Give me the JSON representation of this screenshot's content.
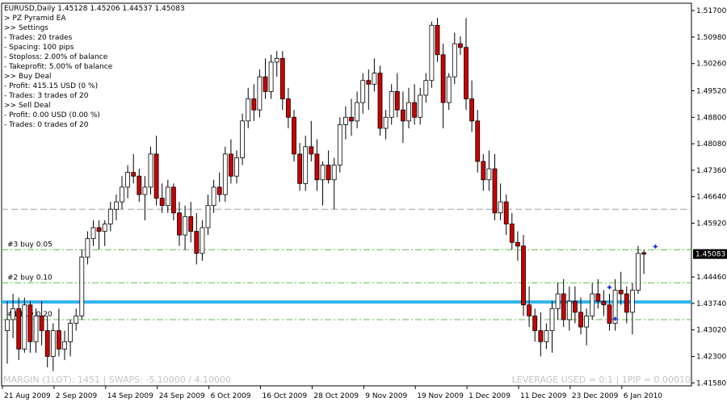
{
  "header": {
    "symbol_line": "EURUSD,Daily  1.45128 1.45206 1.44537 1.45083"
  },
  "ea_panel": {
    "lines": [
      "> PZ Pyramid EA",
      ">> Settings",
      "- Trades: 20 trades",
      "- Spacing: 100 pips",
      "- Stoploss: 2.00% of balance",
      "- Takeprofit: 5.00% of balance",
      ">> Buy Deal",
      "- Profit: 415.15 USD (0 %)",
      "- Trades: 3 trades of 20",
      ">> Sell Deal",
      "- Profit: 0.00 USD (0.00 %)",
      "- Trades: 0 trades of 20"
    ]
  },
  "footer": {
    "left": "MARGIN (1LOT): 1451 | SWAPS: -5.10000 / 4.10000",
    "right": "LEVERAGE USED = 0:1 | 1PIP = 0.00010"
  },
  "colors": {
    "bull_fill": "#ffffff",
    "bear_fill": "#cc0000",
    "candle_outline": "#000000",
    "level_line": "#5bc24a",
    "main_line": "#30b4ee",
    "upper_dashed": "#a0a0a0",
    "marker": "#2030e0",
    "price_tag_bg": "#000000",
    "price_tag_text": "#ffffff",
    "footer_text": "#c4c4c4"
  },
  "chart_data": {
    "type": "candlestick",
    "ylim": [
      1.415,
      1.519
    ],
    "y_ticks": [
      "1.51700",
      "1.50980",
      "1.50260",
      "1.49520",
      "1.48800",
      "1.48080",
      "1.47360",
      "1.46640",
      "1.45920",
      "1.45083",
      "1.44460",
      "1.43740",
      "1.43020",
      "1.42300",
      "1.41580"
    ],
    "y_tick_values": [
      1.517,
      1.5098,
      1.5026,
      1.4952,
      1.488,
      1.4808,
      1.4736,
      1.4664,
      1.4592,
      1.45083,
      1.4446,
      1.4374,
      1.4302,
      1.423,
      1.4158
    ],
    "current_price": 1.45083,
    "current_price_label": "1.45083",
    "x_labels": [
      "21 Aug 2009",
      "2 Sep 2009",
      "14 Sep 2009",
      "24 Sep 2009",
      "6 Oct 2009",
      "16 Oct 2009",
      "28 Oct 2009",
      "9 Nov 2009",
      "19 Nov 2009",
      "1 Dec 2009",
      "11 Dec 2009",
      "23 Dec 2009",
      "6 Jan 2010"
    ],
    "x_label_index": [
      0,
      9,
      18,
      27,
      36,
      45,
      54,
      63,
      72,
      81,
      90,
      99,
      108
    ],
    "levels": [
      {
        "label": "#3 buy 0.05",
        "price": 1.452
      },
      {
        "label": "#2 buy 0.10",
        "price": 1.443
      },
      {
        "label": "#1 buy 0.20",
        "price": 1.433
      }
    ],
    "main_line_price": 1.4378,
    "upper_dashed_price": 1.463,
    "markers": [
      {
        "i": 105,
        "price": 1.4418
      },
      {
        "i": 106,
        "price": 1.4332
      },
      {
        "i": 113,
        "price": 1.4528
      }
    ],
    "candles": [
      [
        1.43,
        1.438,
        1.421,
        1.433
      ],
      [
        1.433,
        1.44,
        1.428,
        1.436
      ],
      [
        1.436,
        1.439,
        1.422,
        1.425
      ],
      [
        1.425,
        1.439,
        1.424,
        1.437
      ],
      [
        1.437,
        1.438,
        1.424,
        1.427
      ],
      [
        1.427,
        1.436,
        1.424,
        1.434
      ],
      [
        1.434,
        1.438,
        1.426,
        1.43
      ],
      [
        1.43,
        1.434,
        1.42,
        1.423
      ],
      [
        1.423,
        1.432,
        1.419,
        1.43
      ],
      [
        1.43,
        1.436,
        1.423,
        1.425
      ],
      [
        1.425,
        1.43,
        1.422,
        1.427
      ],
      [
        1.427,
        1.433,
        1.423,
        1.432
      ],
      [
        1.432,
        1.436,
        1.43,
        1.434
      ],
      [
        1.434,
        1.452,
        1.433,
        1.45
      ],
      [
        1.45,
        1.457,
        1.448,
        1.455
      ],
      [
        1.455,
        1.46,
        1.453,
        1.458
      ],
      [
        1.458,
        1.46,
        1.452,
        1.457
      ],
      [
        1.457,
        1.46,
        1.453,
        1.459
      ],
      [
        1.459,
        1.465,
        1.457,
        1.463
      ],
      [
        1.463,
        1.467,
        1.46,
        1.465
      ],
      [
        1.465,
        1.472,
        1.463,
        1.469
      ],
      [
        1.469,
        1.475,
        1.466,
        1.473
      ],
      [
        1.473,
        1.478,
        1.47,
        1.472
      ],
      [
        1.472,
        1.474,
        1.465,
        1.467
      ],
      [
        1.467,
        1.472,
        1.46,
        1.469
      ],
      [
        1.469,
        1.48,
        1.467,
        1.478
      ],
      [
        1.478,
        1.483,
        1.464,
        1.466
      ],
      [
        1.466,
        1.47,
        1.462,
        1.464
      ],
      [
        1.464,
        1.471,
        1.462,
        1.469
      ],
      [
        1.469,
        1.47,
        1.46,
        1.462
      ],
      [
        1.462,
        1.465,
        1.453,
        1.456
      ],
      [
        1.456,
        1.464,
        1.452,
        1.461
      ],
      [
        1.461,
        1.465,
        1.454,
        1.457
      ],
      [
        1.457,
        1.462,
        1.448,
        1.451
      ],
      [
        1.451,
        1.46,
        1.449,
        1.458
      ],
      [
        1.458,
        1.467,
        1.456,
        1.464
      ],
      [
        1.464,
        1.471,
        1.462,
        1.469
      ],
      [
        1.469,
        1.473,
        1.465,
        1.467
      ],
      [
        1.467,
        1.48,
        1.465,
        1.478
      ],
      [
        1.478,
        1.482,
        1.47,
        1.472
      ],
      [
        1.472,
        1.479,
        1.47,
        1.477
      ],
      [
        1.477,
        1.489,
        1.475,
        1.487
      ],
      [
        1.487,
        1.496,
        1.485,
        1.493
      ],
      [
        1.493,
        1.497,
        1.487,
        1.49
      ],
      [
        1.49,
        1.501,
        1.488,
        1.499
      ],
      [
        1.499,
        1.504,
        1.493,
        1.495
      ],
      [
        1.495,
        1.505,
        1.493,
        1.503
      ],
      [
        1.503,
        1.506,
        1.499,
        1.504
      ],
      [
        1.504,
        1.506,
        1.49,
        1.493
      ],
      [
        1.493,
        1.496,
        1.485,
        1.488
      ],
      [
        1.488,
        1.49,
        1.476,
        1.478
      ],
      [
        1.478,
        1.481,
        1.468,
        1.47
      ],
      [
        1.47,
        1.483,
        1.468,
        1.48
      ],
      [
        1.48,
        1.487,
        1.476,
        1.478
      ],
      [
        1.478,
        1.482,
        1.468,
        1.471
      ],
      [
        1.471,
        1.476,
        1.464,
        1.475
      ],
      [
        1.475,
        1.479,
        1.47,
        1.471
      ],
      [
        1.471,
        1.477,
        1.463,
        1.475
      ],
      [
        1.475,
        1.488,
        1.473,
        1.486
      ],
      [
        1.486,
        1.491,
        1.482,
        1.488
      ],
      [
        1.488,
        1.493,
        1.483,
        1.487
      ],
      [
        1.487,
        1.495,
        1.485,
        1.492
      ],
      [
        1.492,
        1.5,
        1.489,
        1.498
      ],
      [
        1.498,
        1.501,
        1.49,
        1.497
      ],
      [
        1.497,
        1.504,
        1.495,
        1.5
      ],
      [
        1.5,
        1.502,
        1.483,
        1.485
      ],
      [
        1.485,
        1.49,
        1.482,
        1.488
      ],
      [
        1.488,
        1.497,
        1.486,
        1.495
      ],
      [
        1.495,
        1.5,
        1.488,
        1.49
      ],
      [
        1.49,
        1.495,
        1.481,
        1.487
      ],
      [
        1.487,
        1.496,
        1.485,
        1.492
      ],
      [
        1.492,
        1.497,
        1.486,
        1.488
      ],
      [
        1.488,
        1.496,
        1.486,
        1.494
      ],
      [
        1.494,
        1.5,
        1.492,
        1.498
      ],
      [
        1.498,
        1.514,
        1.496,
        1.513
      ],
      [
        1.513,
        1.515,
        1.503,
        1.505
      ],
      [
        1.505,
        1.508,
        1.485,
        1.492
      ],
      [
        1.492,
        1.5,
        1.49,
        1.499
      ],
      [
        1.499,
        1.511,
        1.497,
        1.508
      ],
      [
        1.508,
        1.51,
        1.505,
        1.507
      ],
      [
        1.507,
        1.515,
        1.49,
        1.493
      ],
      [
        1.493,
        1.498,
        1.484,
        1.487
      ],
      [
        1.487,
        1.49,
        1.473,
        1.476
      ],
      [
        1.476,
        1.478,
        1.468,
        1.471
      ],
      [
        1.471,
        1.479,
        1.468,
        1.474
      ],
      [
        1.474,
        1.478,
        1.46,
        1.462
      ],
      [
        1.462,
        1.47,
        1.46,
        1.465
      ],
      [
        1.465,
        1.467,
        1.456,
        1.459
      ],
      [
        1.459,
        1.462,
        1.452,
        1.454
      ],
      [
        1.454,
        1.457,
        1.449,
        1.453
      ],
      [
        1.453,
        1.456,
        1.434,
        1.437
      ],
      [
        1.437,
        1.442,
        1.431,
        1.434
      ],
      [
        1.434,
        1.436,
        1.427,
        1.43
      ],
      [
        1.43,
        1.435,
        1.423,
        1.427
      ],
      [
        1.427,
        1.432,
        1.425,
        1.43
      ],
      [
        1.43,
        1.438,
        1.424,
        1.436
      ],
      [
        1.436,
        1.443,
        1.433,
        1.44
      ],
      [
        1.44,
        1.444,
        1.431,
        1.433
      ],
      [
        1.433,
        1.442,
        1.43,
        1.438
      ],
      [
        1.438,
        1.442,
        1.432,
        1.435
      ],
      [
        1.435,
        1.439,
        1.429,
        1.431
      ],
      [
        1.431,
        1.436,
        1.426,
        1.434
      ],
      [
        1.434,
        1.443,
        1.433,
        1.44
      ],
      [
        1.44,
        1.444,
        1.436,
        1.438
      ],
      [
        1.438,
        1.441,
        1.434,
        1.437
      ],
      [
        1.437,
        1.44,
        1.43,
        1.432
      ],
      [
        1.432,
        1.444,
        1.43,
        1.441
      ],
      [
        1.441,
        1.446,
        1.437,
        1.44
      ],
      [
        1.44,
        1.442,
        1.432,
        1.435
      ],
      [
        1.435,
        1.443,
        1.429,
        1.441
      ],
      [
        1.441,
        1.453,
        1.44,
        1.451
      ],
      [
        1.4512,
        1.452,
        1.4454,
        1.4508
      ]
    ]
  }
}
